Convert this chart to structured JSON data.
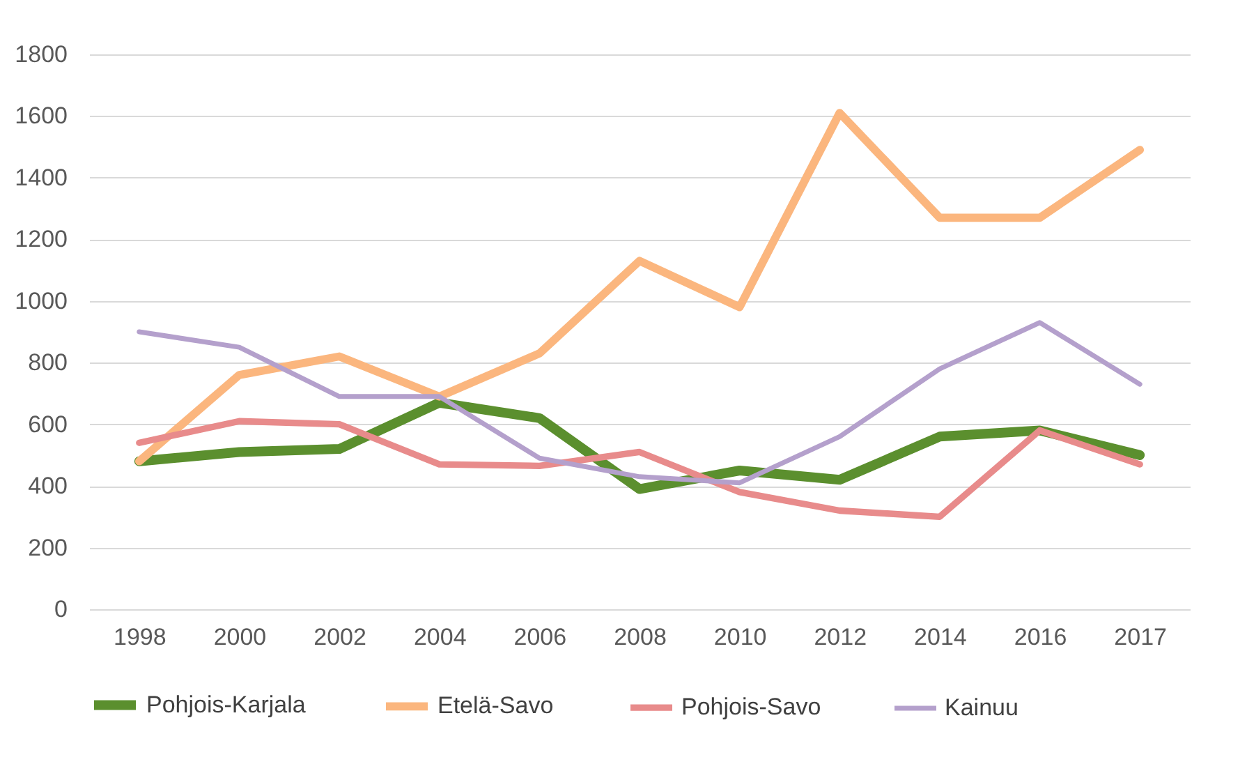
{
  "chart_data": {
    "type": "line",
    "categories": [
      "1998",
      "2000",
      "2002",
      "2004",
      "2006",
      "2008",
      "2010",
      "2012",
      "2014",
      "2016",
      "2017"
    ],
    "series": [
      {
        "name": "Pohjois-Karjala",
        "color": "#5b8f2e",
        "values": [
          480,
          510,
          520,
          670,
          620,
          390,
          450,
          420,
          560,
          580,
          500
        ]
      },
      {
        "name": "Etelä-Savo",
        "color": "#fbb67e",
        "values": [
          480,
          760,
          820,
          690,
          830,
          1130,
          980,
          1610,
          1270,
          1270,
          1490
        ]
      },
      {
        "name": "Pohjois-Savo",
        "color": "#e88b8b",
        "values": [
          540,
          610,
          600,
          470,
          465,
          510,
          380,
          320,
          300,
          580,
          470
        ]
      },
      {
        "name": "Kainuu",
        "color": "#b4a0cc",
        "values": [
          900,
          850,
          690,
          690,
          490,
          430,
          410,
          560,
          780,
          930,
          730
        ]
      }
    ],
    "ylim": [
      0,
      1800
    ],
    "yticks": [
      0,
      200,
      400,
      600,
      800,
      1000,
      1200,
      1400,
      1600,
      1800
    ],
    "grid": "y",
    "legend": "bottom",
    "marker": "none",
    "line_style": "solid"
  }
}
